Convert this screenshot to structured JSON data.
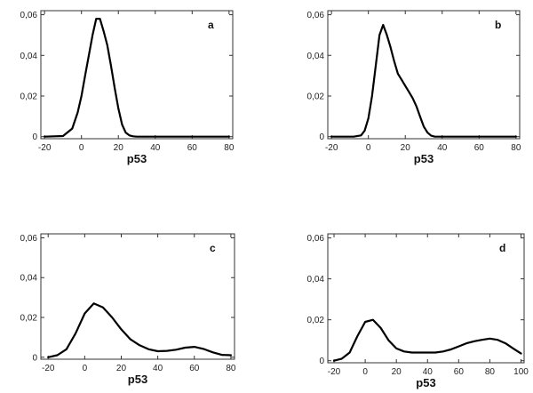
{
  "chart_data": [
    {
      "type": "line",
      "panel_label": "a",
      "xlabel": "p53",
      "ylabel": "",
      "xlim": [
        -22,
        82
      ],
      "ylim": [
        -0.001,
        0.062
      ],
      "xticks": [
        -20,
        0,
        20,
        40,
        60,
        80
      ],
      "xtick_labels": [
        "-20",
        "0",
        "20",
        "40",
        "60",
        "80"
      ],
      "yticks": [
        0,
        0.02,
        0.04,
        0.06
      ],
      "ytick_labels": [
        "0",
        "0,02",
        "0,04",
        "0,06"
      ],
      "grid": false,
      "series": [
        {
          "x": [
            -20,
            -10,
            -5,
            -2,
            0,
            2,
            4,
            6,
            8,
            10,
            12,
            14,
            16,
            18,
            20,
            22,
            24,
            26,
            28,
            30,
            40,
            60,
            80
          ],
          "y": [
            0,
            0.0003,
            0.004,
            0.012,
            0.02,
            0.03,
            0.04,
            0.05,
            0.058,
            0.058,
            0.052,
            0.045,
            0.035,
            0.024,
            0.014,
            0.006,
            0.002,
            0.0006,
            0.0002,
            0,
            0,
            0,
            0
          ]
        }
      ]
    },
    {
      "type": "line",
      "panel_label": "b",
      "xlabel": "p53",
      "ylabel": "",
      "xlim": [
        -22,
        82
      ],
      "ylim": [
        -0.001,
        0.062
      ],
      "xticks": [
        -20,
        0,
        20,
        40,
        60,
        80
      ],
      "xtick_labels": [
        "-20",
        "0",
        "20",
        "40",
        "60",
        "80"
      ],
      "yticks": [
        0,
        0.02,
        0.04,
        0.06
      ],
      "ytick_labels": [
        "0",
        "0,02",
        "0,04",
        "0,06"
      ],
      "grid": false,
      "series": [
        {
          "x": [
            -20,
            -8,
            -4,
            -2,
            0,
            2,
            4,
            6,
            8,
            10,
            12,
            14,
            16,
            18,
            20,
            22,
            24,
            26,
            28,
            30,
            32,
            34,
            36,
            40,
            60,
            80
          ],
          "y": [
            0,
            0,
            0.0006,
            0.003,
            0.009,
            0.02,
            0.035,
            0.05,
            0.055,
            0.05,
            0.044,
            0.037,
            0.031,
            0.028,
            0.025,
            0.022,
            0.019,
            0.015,
            0.01,
            0.005,
            0.002,
            0.0005,
            0,
            0,
            0,
            0
          ]
        }
      ]
    },
    {
      "type": "line",
      "panel_label": "c",
      "xlabel": "p53",
      "ylabel": "",
      "xlim": [
        -24,
        82
      ],
      "ylim": [
        -0.001,
        0.062
      ],
      "xticks": [
        -20,
        0,
        20,
        40,
        60,
        80
      ],
      "xtick_labels": [
        "-20",
        "0",
        "20",
        "40",
        "60",
        "80"
      ],
      "yticks": [
        0,
        0.02,
        0.04,
        0.06
      ],
      "ytick_labels": [
        "0",
        "0,02",
        "0,04",
        "0,06"
      ],
      "grid": false,
      "series": [
        {
          "x": [
            -20,
            -15,
            -10,
            -5,
            0,
            5,
            10,
            15,
            20,
            25,
            30,
            35,
            40,
            45,
            50,
            55,
            60,
            65,
            70,
            75,
            80
          ],
          "y": [
            0,
            0.001,
            0.004,
            0.012,
            0.022,
            0.027,
            0.025,
            0.02,
            0.014,
            0.009,
            0.006,
            0.004,
            0.003,
            0.0032,
            0.0038,
            0.0048,
            0.0052,
            0.0042,
            0.0025,
            0.0012,
            0.001
          ]
        }
      ]
    },
    {
      "type": "line",
      "panel_label": "d",
      "xlabel": "p53",
      "ylabel": "",
      "xlim": [
        -24,
        102
      ],
      "ylim": [
        -0.001,
        0.062
      ],
      "xticks": [
        -20,
        0,
        20,
        40,
        60,
        80,
        100
      ],
      "xtick_labels": [
        "-20",
        "0",
        "20",
        "40",
        "60",
        "80",
        "100"
      ],
      "yticks": [
        0,
        0.02,
        0.04,
        0.06
      ],
      "ytick_labels": [
        "0",
        "0,02",
        "0,04",
        "0,06"
      ],
      "grid": false,
      "series": [
        {
          "x": [
            -20,
            -15,
            -10,
            -5,
            0,
            5,
            10,
            15,
            20,
            25,
            30,
            35,
            40,
            45,
            50,
            55,
            60,
            65,
            70,
            75,
            80,
            85,
            90,
            95,
            100
          ],
          "y": [
            0,
            0.001,
            0.004,
            0.012,
            0.019,
            0.02,
            0.016,
            0.01,
            0.006,
            0.0045,
            0.004,
            0.004,
            0.004,
            0.004,
            0.0045,
            0.0055,
            0.007,
            0.0085,
            0.0095,
            0.0102,
            0.0108,
            0.0102,
            0.0085,
            0.006,
            0.0035
          ]
        }
      ]
    }
  ]
}
